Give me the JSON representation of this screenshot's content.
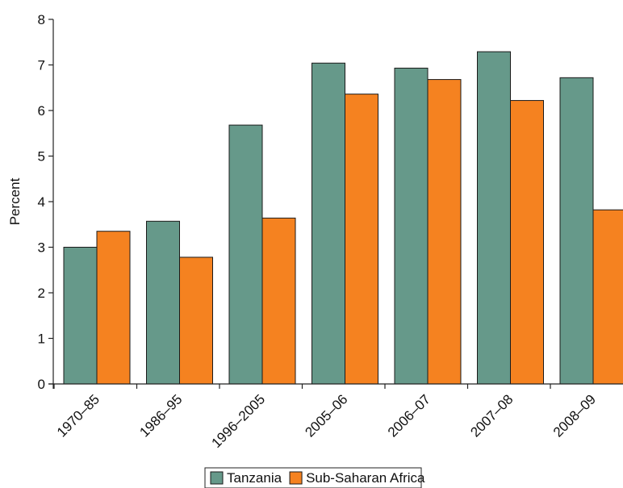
{
  "chart_data": {
    "type": "bar",
    "title": "",
    "xlabel": "",
    "ylabel": "Percent",
    "ylim": [
      0,
      8
    ],
    "yticks": [
      0,
      1,
      2,
      3,
      4,
      5,
      6,
      7,
      8
    ],
    "categories": [
      "1970–85",
      "1986–95",
      "1996–2005",
      "2005–06",
      "2006–07",
      "2007–08",
      "2008–09"
    ],
    "series": [
      {
        "name": "Tanzania",
        "color": "#66998a",
        "values": [
          3.0,
          3.57,
          5.68,
          7.04,
          6.93,
          7.29,
          6.72
        ]
      },
      {
        "name": "Sub-Saharan Africa",
        "color": "#f58220",
        "values": [
          3.35,
          2.78,
          3.64,
          6.36,
          6.68,
          6.22,
          3.82
        ]
      }
    ],
    "grid": false,
    "legend_position": "bottom-center"
  }
}
